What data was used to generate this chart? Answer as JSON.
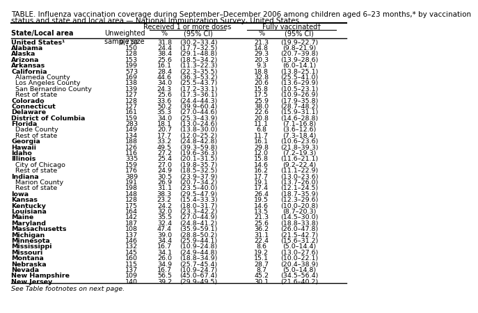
{
  "title_line1": "TABLE. Influenza vaccination coverage during September–December 2006 among children aged 6–23 months,* by vaccination",
  "title_line2": "status and state and local area — National Immunization Survey, United States",
  "rows": [
    [
      "United States¹",
      "9,710",
      "31.8",
      "(30.2–33.4)",
      "21.3",
      "(19.9–22.7)",
      false
    ],
    [
      "Alabama",
      "150",
      "24.4",
      "(17.7–32.5)",
      "14.8",
      "(9.8–21.9)",
      false
    ],
    [
      "Alaska",
      "128",
      "38.4",
      "(29.1–48.8)",
      "29.3",
      "(20.7–39.8)",
      false
    ],
    [
      "Arizona",
      "153",
      "25.6",
      "(18.5–34.2)",
      "20.3",
      "(13.9–28.6)",
      false
    ],
    [
      "Arkansas",
      "199",
      "16.1",
      "(11.3–22.3)",
      "9.3",
      "(6.0–14.1)",
      false
    ],
    [
      "California",
      "573",
      "28.4",
      "(22.3–35.5)",
      "18.8",
      "(13.8–25.1)",
      false
    ],
    [
      "  Alameda County",
      "169",
      "44.6",
      "(36.3–53.2)",
      "32.8",
      "(25.5–41.0)",
      true
    ],
    [
      "  Los Angeles County",
      "138",
      "34.0",
      "(25.5–43.7)",
      "20.6",
      "(13.6–29.9)",
      true
    ],
    [
      "  San Bernardino County",
      "139",
      "24.3",
      "(17.2–33.1)",
      "15.8",
      "(10.5–23.1)",
      true
    ],
    [
      "  Rest of state",
      "127",
      "25.6",
      "(17.3–36.1)",
      "17.5",
      "(10.9–26.9)",
      true
    ],
    [
      "Colorado",
      "128",
      "33.6",
      "(24.4–44.3)",
      "25.9",
      "(17.9–35.8)",
      false
    ],
    [
      "Connecticut",
      "127",
      "50.2",
      "(39.9–60.4)",
      "38.0",
      "(28.7–48.2)",
      false
    ],
    [
      "Delaware",
      "161",
      "35.3",
      "(27.0–44.6)",
      "22.6",
      "(15.9–31.1)",
      false
    ],
    [
      "District of Columbia",
      "159",
      "34.0",
      "(25.3–43.9)",
      "20.8",
      "(14.6–28.8)",
      false
    ],
    [
      "Florida",
      "283",
      "18.1",
      "(13.0–24.6)",
      "11.1",
      "(7.1–16.8)",
      false
    ],
    [
      "  Dade County",
      "149",
      "20.7",
      "(13.8–30.0)",
      "6.8",
      "(3.6–12.6)",
      true
    ],
    [
      "  Rest of state",
      "134",
      "17.7",
      "(12.0–25.2)",
      "11.7",
      "(7.3–18.4)",
      true
    ],
    [
      "Georgia",
      "188",
      "33.2",
      "(24.8–42.8)",
      "16.1",
      "(10.6–23.6)",
      false
    ],
    [
      "Hawaii",
      "126",
      "49.5",
      "(39.3–59.8)",
      "29.8",
      "(21.8–39.3)",
      false
    ],
    [
      "Idaho",
      "116",
      "27.2",
      "(19.6–36.3)",
      "12.0",
      "(7.2–19.3)",
      false
    ],
    [
      "Illinois",
      "335",
      "25.4",
      "(20.1–31.5)",
      "15.8",
      "(11.6–21.1)",
      false
    ],
    [
      "  City of Chicago",
      "159",
      "27.0",
      "(19.8–35.7)",
      "14.6",
      "(9.2–22.4)",
      true
    ],
    [
      "  Rest of state",
      "176",
      "24.9",
      "(18.5–32.5)",
      "16.2",
      "(11.1–22.9)",
      true
    ],
    [
      "Indiana",
      "389",
      "30.5",
      "(23.9–37.9)",
      "17.7",
      "(13.0–23.6)",
      false
    ],
    [
      "  Marion County",
      "191",
      "26.9",
      "(20.7–34.2)",
      "19.1",
      "(13.7–26.0)",
      true
    ],
    [
      "  Rest of state",
      "198",
      "31.1",
      "(23.5–40.0)",
      "17.4",
      "(12.1–24.5)",
      true
    ],
    [
      "Iowa",
      "148",
      "38.3",
      "(29.5–47.9)",
      "26.4",
      "(18.7–35.9)",
      false
    ],
    [
      "Kansas",
      "128",
      "23.2",
      "(15.4–33.3)",
      "19.5",
      "(12.3–29.6)",
      false
    ],
    [
      "Kentucky",
      "175",
      "24.2",
      "(18.0–31.7)",
      "14.6",
      "(10.0–20.8)",
      false
    ],
    [
      "Louisiana",
      "164",
      "32.0",
      "(23.3–42.2)",
      "13.5",
      "(8.7–20.3)",
      false
    ],
    [
      "Maine",
      "142",
      "35.5",
      "(27.0–44.9)",
      "21.3",
      "(14.5–30.0)",
      false
    ],
    [
      "Maryland",
      "187",
      "32.4",
      "(24.8–41.2)",
      "25.6",
      "(18.8–33.8)",
      false
    ],
    [
      "Massachusetts",
      "108",
      "47.4",
      "(35.9–59.1)",
      "36.2",
      "(26.0–47.8)",
      false
    ],
    [
      "Michigan",
      "137",
      "39.0",
      "(28.8–50.2)",
      "31.1",
      "(21.5–42.7)",
      false
    ],
    [
      "Minnesota",
      "146",
      "34.4",
      "(25.9–44.1)",
      "22.4",
      "(15.6–31.2)",
      false
    ],
    [
      "Mississippi",
      "132",
      "16.7",
      "(10.9–24.8)",
      "8.6",
      "(5.0–14.4)",
      false
    ],
    [
      "Missouri",
      "145",
      "34.1",
      "(24.9–44.8)",
      "19.2",
      "(13.0–27.6)",
      false
    ],
    [
      "Montana",
      "160",
      "26.0",
      "(18.8–34.9)",
      "15.1",
      "(10.0–22.1)",
      false
    ],
    [
      "Nebraska",
      "115",
      "34.9",
      "(25.7–45.4)",
      "28.7",
      "(20.4–38.9)",
      false
    ],
    [
      "Nevada",
      "137",
      "16.7",
      "(10.9–24.7)",
      "8.7",
      "(5.0–14.8)",
      false
    ],
    [
      "New Hampshire",
      "109",
      "56.5",
      "(45.0–67.4)",
      "45.2",
      "(34.5–56.4)",
      false
    ],
    [
      "New Jersey",
      "140",
      "39.2",
      "(29.9–49.5)",
      "30.1",
      "(21.6–40.2)",
      false
    ]
  ],
  "footer": "See Table footnotes on next page.",
  "bg_color": "#ffffff",
  "font_size": 6.8,
  "title_font_size": 7.5,
  "header_font_size": 7.0
}
